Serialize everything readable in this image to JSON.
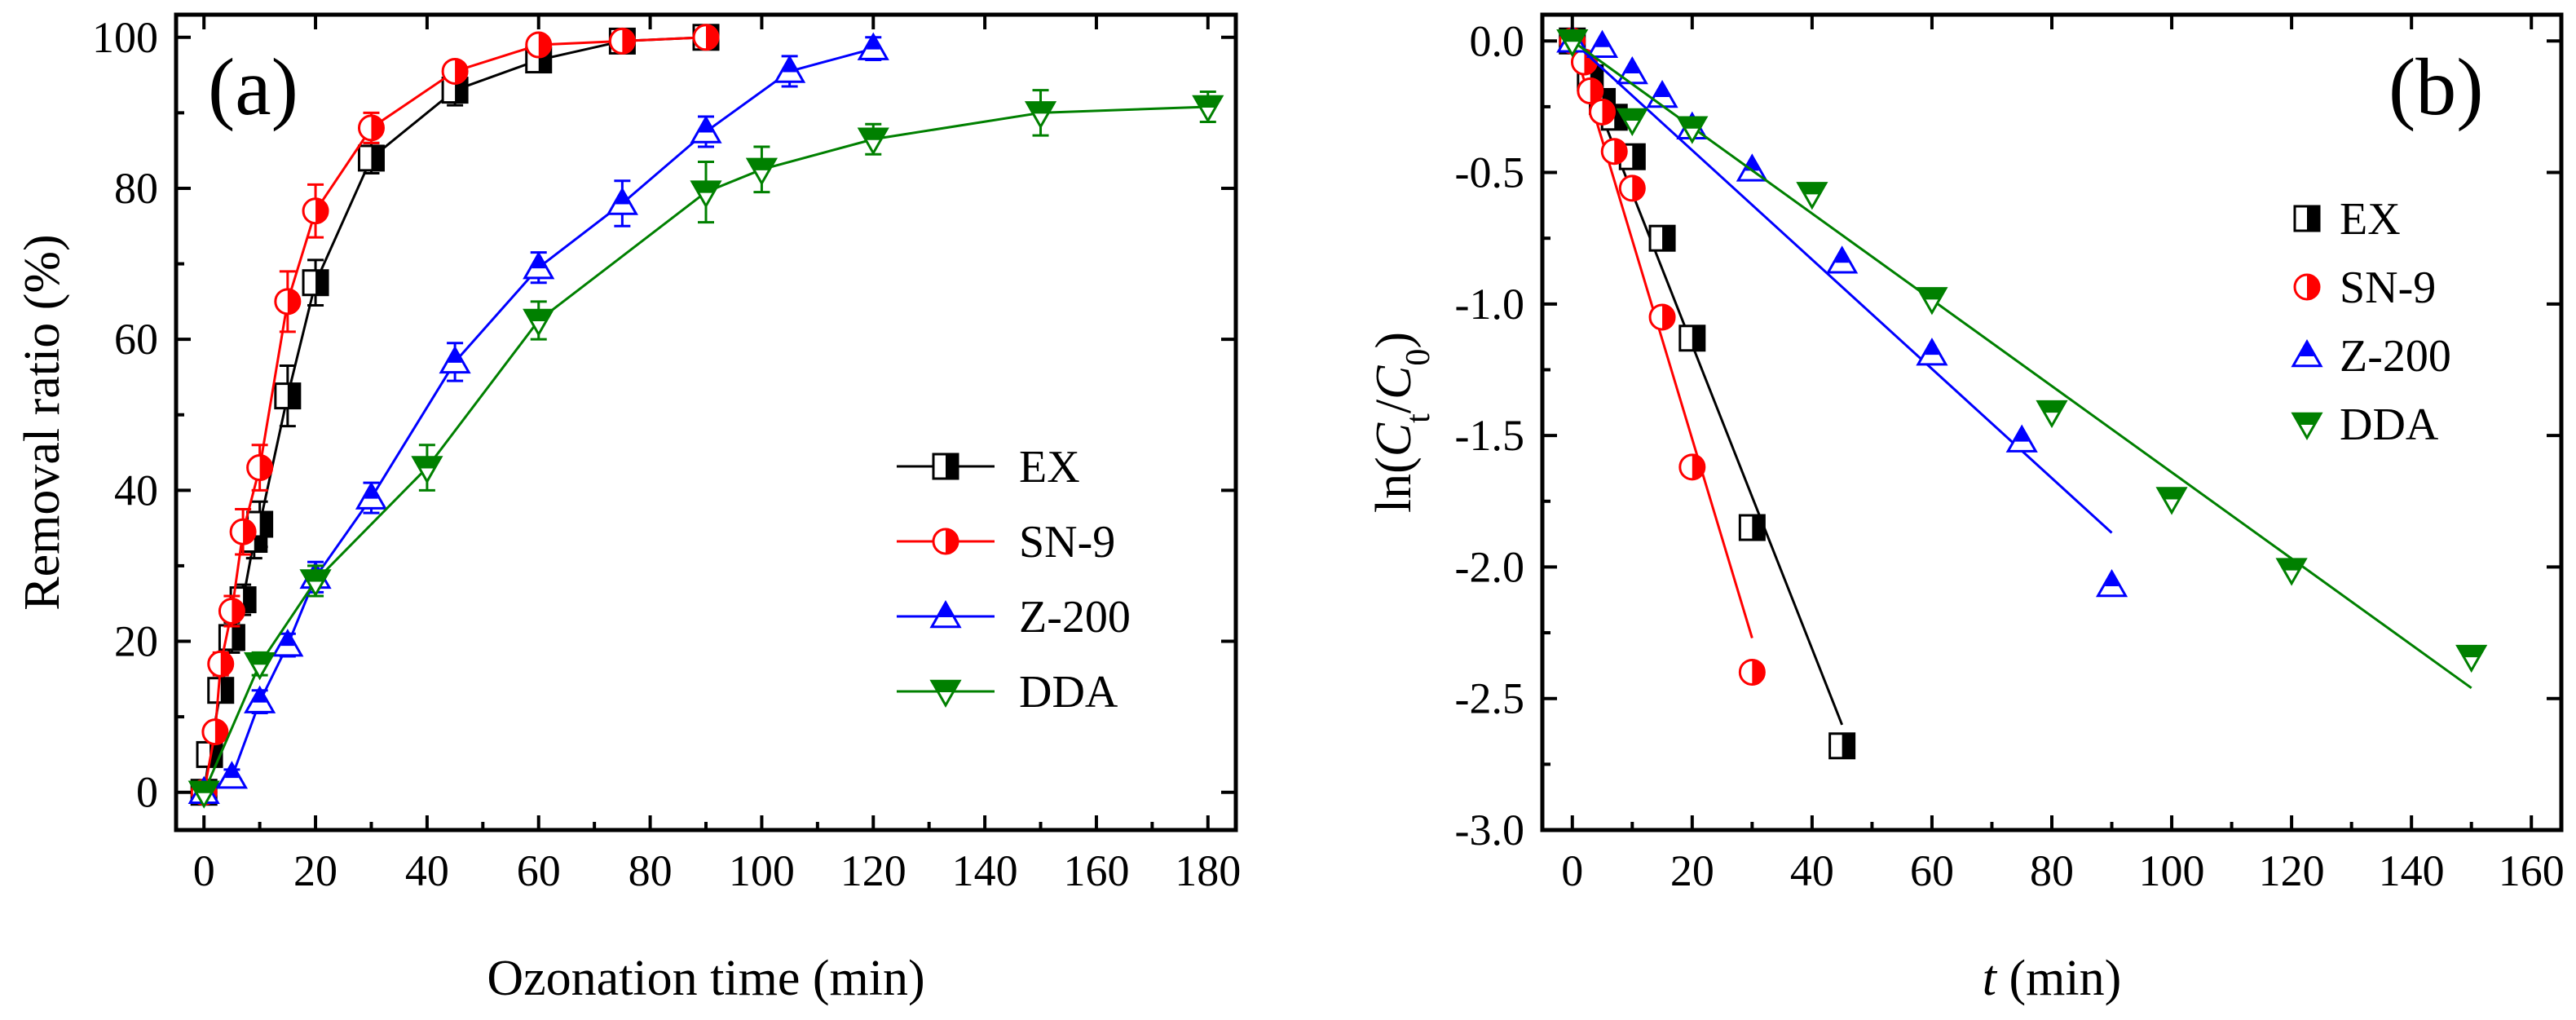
{
  "chart_data": [
    {
      "type": "line",
      "panel_label": "(a)",
      "xlabel": "Ozonation time (min)",
      "ylabel": "Removal ratio  (%)",
      "xlim": [
        -5,
        185
      ],
      "ylim": [
        -5,
        103
      ],
      "xticks": [
        0,
        20,
        40,
        60,
        80,
        100,
        120,
        140,
        160,
        180
      ],
      "yticks": [
        0,
        20,
        40,
        60,
        80,
        100
      ],
      "legend_position": "bottom-right",
      "series": [
        {
          "name": "EX",
          "color": "#000000",
          "marker": "square-half",
          "x": [
            0,
            1,
            3,
            5,
            7,
            9,
            10,
            15,
            20,
            30,
            45,
            60,
            75,
            90
          ],
          "y": [
            0,
            5,
            13.5,
            20.5,
            25.5,
            33.5,
            35.5,
            52.5,
            67.5,
            84,
            93,
            97,
            99.5,
            100
          ],
          "err": [
            0,
            1,
            1,
            2,
            2,
            2.5,
            3,
            4,
            3,
            2,
            2,
            1,
            1,
            0.5
          ]
        },
        {
          "name": "SN-9",
          "color": "#ff0000",
          "marker": "circle-half",
          "x": [
            0,
            2,
            3,
            5,
            7,
            10,
            15,
            20,
            30,
            45,
            60,
            75,
            90
          ],
          "y": [
            0,
            8,
            17,
            24,
            34.5,
            43,
            65,
            77,
            88,
            95.5,
            99,
            99.5,
            100
          ],
          "err": [
            0,
            1,
            1.5,
            2,
            3,
            3,
            4,
            3.5,
            2,
            1,
            1,
            1,
            0.5
          ]
        },
        {
          "name": "Z-200",
          "color": "#0000ff",
          "marker": "triangle-up",
          "x": [
            0,
            5,
            10,
            15,
            20,
            30,
            45,
            60,
            75,
            90,
            105,
            120
          ],
          "y": [
            0,
            2,
            12,
            19.5,
            28.5,
            39,
            57,
            69.5,
            78,
            87.5,
            95.5,
            98.5
          ],
          "err": [
            0,
            1,
            1.5,
            1.5,
            2,
            2,
            2.5,
            2,
            3,
            2,
            2,
            1.5
          ]
        },
        {
          "name": "DDA",
          "color": "#008000",
          "marker": "triangle-down",
          "x": [
            0,
            10,
            20,
            40,
            60,
            90,
            100,
            120,
            150,
            180
          ],
          "y": [
            0,
            17,
            28,
            43,
            62.5,
            79.5,
            82.5,
            86.5,
            90,
            90.8
          ],
          "err": [
            0,
            1.5,
            2,
            3,
            2.5,
            4,
            3,
            2,
            3,
            2
          ]
        }
      ]
    },
    {
      "type": "scatter",
      "panel_label": "(b)",
      "xlabel_var": "t",
      "xlabel_unit": " (min)",
      "ylabel_prefix": "ln(",
      "ylabel_ct": "C",
      "ylabel_ct_sub": "t",
      "ylabel_slash": "/",
      "ylabel_c0": "C",
      "ylabel_c0_sub": "0",
      "ylabel_suffix": ")",
      "xlim": [
        -5,
        165
      ],
      "ylim": [
        -3.0,
        0.1
      ],
      "xticks": [
        0,
        20,
        40,
        60,
        80,
        100,
        120,
        140,
        160
      ],
      "yticks": [
        "0.0",
        "-0.5",
        "-1.0",
        "-1.5",
        "-2.0",
        "-2.5",
        "-3.0"
      ],
      "legend_position": "top-right",
      "series": [
        {
          "name": "EX",
          "color": "#000000",
          "marker": "square-half",
          "x": [
            0,
            3,
            5,
            7,
            10,
            15,
            20,
            30,
            45
          ],
          "y": [
            0,
            -0.14,
            -0.23,
            -0.29,
            -0.44,
            -0.75,
            -1.13,
            -1.85,
            -2.68
          ],
          "fit": {
            "x": [
              0,
              45
            ],
            "y": [
              0,
              -2.6
            ]
          }
        },
        {
          "name": "SN-9",
          "color": "#ff0000",
          "marker": "circle-half",
          "x": [
            0,
            2,
            3,
            5,
            7,
            10,
            15,
            20,
            30
          ],
          "y": [
            0,
            -0.08,
            -0.19,
            -0.27,
            -0.42,
            -0.56,
            -1.05,
            -1.62,
            -2.4
          ],
          "fit": {
            "x": [
              0,
              30
            ],
            "y": [
              0,
              -2.27
            ]
          }
        },
        {
          "name": "Z-200",
          "color": "#0000ff",
          "marker": "triangle-up",
          "x": [
            0,
            5,
            10,
            15,
            20,
            30,
            45,
            60,
            75,
            90
          ],
          "y": [
            0,
            -0.02,
            -0.12,
            -0.21,
            -0.33,
            -0.49,
            -0.84,
            -1.19,
            -1.52,
            -2.07
          ],
          "fit": {
            "x": [
              0,
              90
            ],
            "y": [
              0,
              -1.87
            ]
          }
        },
        {
          "name": "DDA",
          "color": "#008000",
          "marker": "triangle-down",
          "x": [
            0,
            10,
            20,
            40,
            60,
            80,
            100,
            120,
            150
          ],
          "y": [
            0,
            -0.3,
            -0.33,
            -0.58,
            -0.98,
            -1.41,
            -1.74,
            -2.01,
            -2.34
          ],
          "fit": {
            "x": [
              0,
              150
            ],
            "y": [
              0,
              -2.46
            ]
          }
        }
      ]
    }
  ]
}
